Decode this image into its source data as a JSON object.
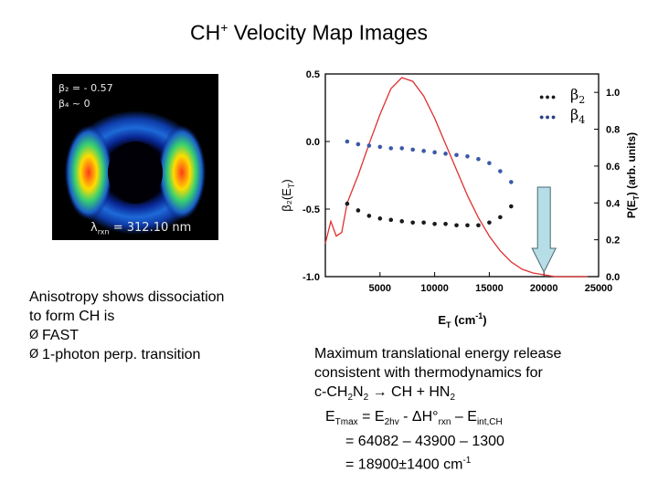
{
  "title": {
    "main": "CH",
    "sup": "+",
    "rest": " Velocity Map Images"
  },
  "image": {
    "beta2_label": "β₂ = - 0.57",
    "beta4_label": "β₄ ~ 0",
    "wavelength_label": "λ",
    "wavelength_sub": "rxn",
    "wavelength_value": " = 312.10 nm"
  },
  "left_text": {
    "line1": "Anisotropy shows dissociation",
    "line2": "to form CH is",
    "bullet1": "FAST",
    "bullet2": "1-photon perp. transition",
    "bullet_symbol": "Ø"
  },
  "right_text": {
    "line1": "Maximum translational energy release",
    "line2": "consistent with thermodynamics for",
    "line3_a": "c-CH",
    "line3_sub1": "2",
    "line3_b": "N",
    "line3_sub2": "2",
    "line3_c": " → CH + HN",
    "line3_sub3": "2",
    "eq1_a": "E",
    "eq1_sub1": "Tmax",
    "eq1_b": " = E",
    "eq1_sub2": "2hv",
    "eq1_c": " - ΔH°",
    "eq1_sub3": "rxn",
    "eq1_d": " – E",
    "eq1_sub4": "int,CH",
    "eq2": "= 64082 – 43900 – 1300",
    "eq3_a": "= 18900±1400 cm",
    "eq3_sup": "-1"
  },
  "chart_data": {
    "type": "scatter",
    "xlabel": "E",
    "xlabel_sub": "T",
    "xlabel_unit": " (cm",
    "xlabel_unit_sup": "-1",
    "xlabel_end": ")",
    "ylabel_left": "β₂(E",
    "ylabel_left_sub": "T",
    "ylabel_left_end": ")",
    "ylabel_right": "P(E",
    "ylabel_right_sub": "T",
    "ylabel_right_end": ") (arb. units)",
    "xlim": [
      0,
      25000
    ],
    "ylim_left": [
      -1.0,
      0.5
    ],
    "ylim_right": [
      0.0,
      1.1
    ],
    "x_ticks": [
      "5000",
      "10000",
      "15000",
      "20000",
      "25000"
    ],
    "x_tick_values": [
      5000,
      10000,
      15000,
      20000,
      25000
    ],
    "y_left_ticks": [
      "0.5",
      "0.0",
      "-0.5",
      "-1.0"
    ],
    "y_left_tick_values": [
      0.5,
      0.0,
      -0.5,
      -1.0
    ],
    "y_right_ticks": [
      "1.0",
      "0.8",
      "0.6",
      "0.4",
      "0.2",
      "0.0"
    ],
    "y_right_tick_values": [
      1.0,
      0.8,
      0.6,
      0.4,
      0.2,
      0.0
    ],
    "legend": [
      {
        "symbol": "●●●",
        "label": "β",
        "sub": "2",
        "color": "#1a1a1a"
      },
      {
        "symbol": "●●●",
        "label": "β",
        "sub": "4",
        "color": "#2b3f86"
      }
    ],
    "legend_position": "top-right",
    "colors": {
      "beta2": "#1a1a1a",
      "beta4": "#3a5aa8",
      "distribution": "#e03030",
      "arrow": "#b7dde6",
      "arrow_stroke": "#4a6a73"
    },
    "series": [
      {
        "name": "β2",
        "axis": "left",
        "x": [
          2000,
          3000,
          4000,
          5000,
          6000,
          7000,
          8000,
          9000,
          10000,
          11000,
          12000,
          13000,
          14000,
          15000,
          16000,
          17000
        ],
        "y": [
          -0.46,
          -0.51,
          -0.55,
          -0.57,
          -0.58,
          -0.59,
          -0.6,
          -0.6,
          -0.61,
          -0.61,
          -0.62,
          -0.62,
          -0.62,
          -0.6,
          -0.56,
          -0.48
        ]
      },
      {
        "name": "β4",
        "axis": "left",
        "x": [
          2000,
          3000,
          4000,
          5000,
          6000,
          7000,
          8000,
          9000,
          10000,
          11000,
          12000,
          13000,
          14000,
          15000,
          16000,
          17000
        ],
        "y": [
          0.0,
          -0.02,
          -0.03,
          -0.04,
          -0.05,
          -0.05,
          -0.06,
          -0.07,
          -0.08,
          -0.09,
          -0.1,
          -0.11,
          -0.13,
          -0.16,
          -0.22,
          -0.3
        ]
      },
      {
        "name": "P(ET)",
        "axis": "right",
        "x": [
          0,
          500,
          1000,
          1500,
          2000,
          3000,
          4000,
          5000,
          6000,
          7000,
          8000,
          9000,
          10000,
          11000,
          12000,
          13000,
          14000,
          15000,
          16000,
          17000,
          18000,
          19000,
          20000,
          21000,
          22000,
          24000
        ],
        "y": [
          0.18,
          0.3,
          0.22,
          0.24,
          0.4,
          0.55,
          0.72,
          0.88,
          1.02,
          1.08,
          1.06,
          0.98,
          0.86,
          0.72,
          0.58,
          0.44,
          0.32,
          0.22,
          0.14,
          0.08,
          0.04,
          0.02,
          0.01,
          0.0,
          0.0,
          0.0
        ]
      }
    ],
    "annotation": {
      "type": "down-arrow",
      "x": 20000,
      "text": ""
    }
  }
}
